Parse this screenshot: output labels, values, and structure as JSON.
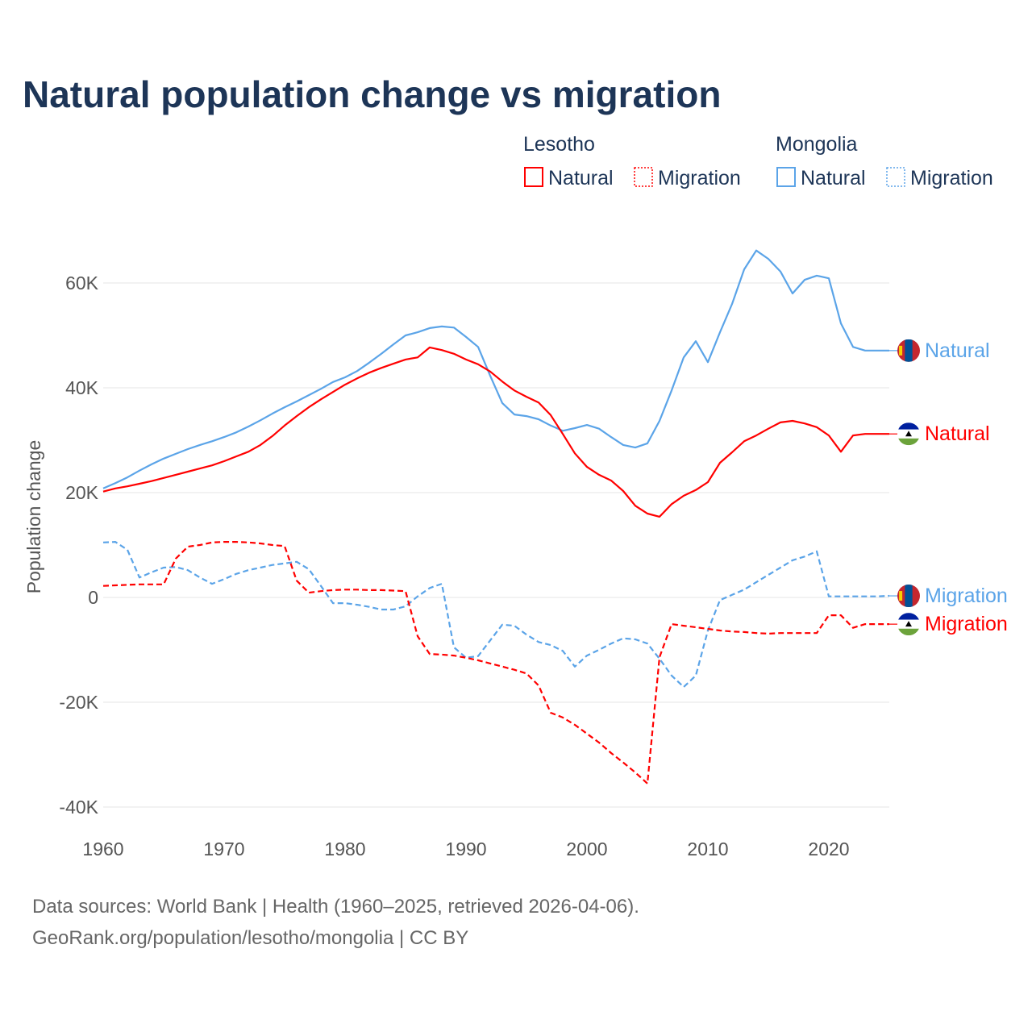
{
  "chart_data": {
    "type": "line",
    "title": "Natural population change vs migration",
    "ylabel": "Population change",
    "xlabel": "",
    "xlim": [
      1960,
      2025
    ],
    "ylim": [
      -40000,
      70000
    ],
    "grid": true,
    "x_ticks": [
      "1960",
      "1970",
      "1980",
      "1990",
      "2000",
      "2010",
      "2020"
    ],
    "y_ticks": [
      {
        "v": 60000,
        "label": "60K"
      },
      {
        "v": 40000,
        "label": "40K"
      },
      {
        "v": 20000,
        "label": "20K"
      },
      {
        "v": 0,
        "label": "0"
      },
      {
        "v": -20000,
        "label": "-20K"
      },
      {
        "v": -40000,
        "label": "-40K"
      }
    ],
    "legend": {
      "placement": "top-right",
      "groups": [
        {
          "country": "Lesotho",
          "items": [
            {
              "label": "Natural",
              "style": "solid"
            },
            {
              "label": "Migration",
              "style": "dotted"
            }
          ]
        },
        {
          "country": "Mongolia",
          "items": [
            {
              "label": "Natural",
              "style": "solid"
            },
            {
              "label": "Migration",
              "style": "dotted"
            }
          ]
        }
      ]
    },
    "x": [
      1960,
      1961,
      1962,
      1963,
      1964,
      1965,
      1966,
      1967,
      1968,
      1969,
      1970,
      1971,
      1972,
      1973,
      1974,
      1975,
      1976,
      1977,
      1978,
      1979,
      1980,
      1981,
      1982,
      1983,
      1984,
      1985,
      1986,
      1987,
      1988,
      1989,
      1990,
      1991,
      1992,
      1993,
      1994,
      1995,
      1996,
      1997,
      1998,
      1999,
      2000,
      2001,
      2002,
      2003,
      2004,
      2005,
      2006,
      2007,
      2008,
      2009,
      2010,
      2011,
      2012,
      2013,
      2014,
      2015,
      2016,
      2017,
      2018,
      2019,
      2020,
      2021,
      2022,
      2023,
      2024,
      2025
    ],
    "series": [
      {
        "name": "Mongolia Natural",
        "country": "Mongolia",
        "kind": "Natural",
        "color": "#5ba4e8",
        "dash": false,
        "end_label": "Natural",
        "values": [
          20.8,
          21.8,
          22.9,
          24.2,
          25.4,
          26.5,
          27.4,
          28.3,
          29.1,
          29.8,
          30.6,
          31.5,
          32.6,
          33.8,
          35.1,
          36.3,
          37.4,
          38.6,
          39.8,
          41.1,
          42.0,
          43.2,
          44.8,
          46.5,
          48.3,
          50.0,
          50.6,
          51.4,
          51.7,
          51.5,
          49.7,
          47.8,
          42.3,
          37.1,
          34.9,
          34.6,
          34.0,
          32.8,
          31.8,
          32.3,
          32.9,
          32.2,
          30.6,
          29.1,
          28.6,
          29.4,
          33.7,
          39.5,
          45.8,
          48.9,
          44.9,
          50.6,
          56.0,
          62.6,
          66.2,
          64.6,
          62.2,
          58.0,
          60.6,
          61.4,
          60.9,
          52.3,
          47.8,
          47.1,
          47.1,
          47.1
        ]
      },
      {
        "name": "Lesotho Natural",
        "country": "Lesotho",
        "kind": "Natural",
        "color": "#ff0000",
        "dash": false,
        "end_label": "Natural",
        "values": [
          20.2,
          20.8,
          21.2,
          21.7,
          22.2,
          22.8,
          23.4,
          24.0,
          24.6,
          25.2,
          26.0,
          26.9,
          27.8,
          29.1,
          30.8,
          32.8,
          34.6,
          36.3,
          37.8,
          39.2,
          40.6,
          41.8,
          42.9,
          43.8,
          44.6,
          45.4,
          45.8,
          47.7,
          47.2,
          46.5,
          45.4,
          44.5,
          43.1,
          41.2,
          39.5,
          38.3,
          37.2,
          34.8,
          31.2,
          27.5,
          24.9,
          23.4,
          22.3,
          20.3,
          17.5,
          16.0,
          15.4,
          17.8,
          19.4,
          20.5,
          22.0,
          25.7,
          27.7,
          29.8,
          30.9,
          32.2,
          33.4,
          33.7,
          33.2,
          32.5,
          30.9,
          27.8,
          30.9,
          31.2,
          31.2,
          31.2
        ]
      },
      {
        "name": "Mongolia Migration",
        "country": "Mongolia",
        "kind": "Migration",
        "color": "#5ba4e8",
        "dash": true,
        "end_label": "Migration",
        "values": [
          10.5,
          10.6,
          9.1,
          3.8,
          4.8,
          5.7,
          5.8,
          5.2,
          3.8,
          2.6,
          3.5,
          4.5,
          5.2,
          5.7,
          6.2,
          6.5,
          6.8,
          5.4,
          2.2,
          -1.1,
          -1.1,
          -1.4,
          -1.8,
          -2.3,
          -2.3,
          -1.7,
          0.2,
          1.8,
          2.6,
          -9.5,
          -11.5,
          -11.2,
          -8.2,
          -5.2,
          -5.4,
          -7.1,
          -8.5,
          -9.1,
          -10.2,
          -13.2,
          -11.1,
          -10.0,
          -8.8,
          -7.8,
          -8.0,
          -8.8,
          -11.7,
          -14.9,
          -17.1,
          -14.9,
          -6.3,
          -0.5,
          0.5,
          1.5,
          2.9,
          4.3,
          5.7,
          7.1,
          7.8,
          8.8,
          0.2,
          0.2,
          0.2,
          0.2,
          0.2,
          0.3
        ]
      },
      {
        "name": "Lesotho Migration",
        "country": "Lesotho",
        "kind": "Migration",
        "color": "#ff0000",
        "dash": true,
        "end_label": "Migration",
        "values": [
          2.2,
          2.3,
          2.4,
          2.5,
          2.5,
          2.5,
          7.4,
          9.7,
          10.0,
          10.5,
          10.6,
          10.6,
          10.5,
          10.3,
          10.0,
          9.8,
          3.2,
          0.9,
          1.2,
          1.4,
          1.5,
          1.5,
          1.4,
          1.4,
          1.3,
          1.2,
          -7.4,
          -10.8,
          -10.9,
          -11.1,
          -11.5,
          -12.0,
          -12.6,
          -13.2,
          -13.8,
          -14.5,
          -16.8,
          -22.0,
          -22.9,
          -24.3,
          -26.0,
          -27.7,
          -29.7,
          -31.5,
          -33.4,
          -35.5,
          -11.4,
          -5.1,
          -5.4,
          -5.7,
          -6.0,
          -6.3,
          -6.5,
          -6.6,
          -6.8,
          -6.9,
          -6.8,
          -6.8,
          -6.8,
          -6.8,
          -3.4,
          -3.4,
          -5.8,
          -5.1,
          -5.1,
          -5.1
        ]
      }
    ],
    "units": "thousands"
  },
  "colors": {
    "lesotho": "#ff0000",
    "mongolia": "#5ba4e8",
    "title": "#1d3557",
    "grid": "#e6e6e6"
  },
  "source": {
    "line1": "Data sources: World Bank | Health (1960–2025, retrieved 2026-04-06).",
    "line2": "GeoRank.org/population/lesotho/mongolia | CC BY"
  }
}
